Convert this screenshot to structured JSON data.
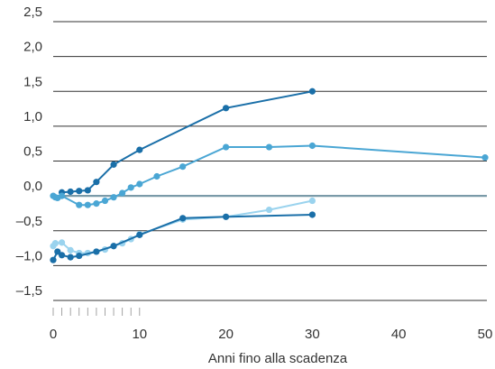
{
  "chart_data": {
    "type": "line",
    "title": "",
    "xlabel": "Anni fino alla scadenza",
    "ylabel": "",
    "xlim": [
      0,
      50
    ],
    "ylim": [
      -1.5,
      2.5
    ],
    "x_ticks": [
      0,
      10,
      20,
      30,
      40,
      50
    ],
    "x_tick_labels": [
      "0",
      "10",
      "20",
      "30",
      "40",
      "50"
    ],
    "y_ticks": [
      -1.5,
      -1.0,
      -0.5,
      0.0,
      0.5,
      1.0,
      1.5,
      2.0,
      2.5
    ],
    "y_tick_labels": [
      "–1,5",
      "–1,0",
      "–0,5",
      "0,0",
      "0,5",
      "1,0",
      "1,5",
      "2,0",
      "2,5"
    ],
    "minor_x_ticks": [
      0,
      1,
      2,
      3,
      4,
      5,
      6,
      7,
      8,
      9,
      10
    ],
    "grid": "horizontal",
    "legend": "none",
    "zero_line_color": "#7a9aa8",
    "series": [
      {
        "color": "#1a6fa8",
        "points": [
          [
            1,
            0.05
          ],
          [
            2,
            0.06
          ],
          [
            3,
            0.07
          ],
          [
            4,
            0.08
          ],
          [
            5,
            0.2
          ],
          [
            7,
            0.45
          ],
          [
            10,
            0.66
          ],
          [
            20,
            1.26
          ],
          [
            30,
            1.5
          ]
        ]
      },
      {
        "color": "#4aa6d4",
        "points": [
          [
            0,
            0.0
          ],
          [
            0.25,
            -0.02
          ],
          [
            0.5,
            -0.03
          ],
          [
            1,
            0.0
          ],
          [
            3,
            -0.13
          ],
          [
            4,
            -0.13
          ],
          [
            5,
            -0.11
          ],
          [
            6,
            -0.07
          ],
          [
            7,
            -0.02
          ],
          [
            8,
            0.04
          ],
          [
            9,
            0.12
          ],
          [
            10,
            0.17
          ],
          [
            12,
            0.28
          ],
          [
            15,
            0.42
          ],
          [
            20,
            0.7
          ],
          [
            25,
            0.7
          ],
          [
            30,
            0.72
          ],
          [
            50,
            0.55
          ]
        ]
      },
      {
        "color": "#9ad3ee",
        "points": [
          [
            0,
            -0.72
          ],
          [
            0.25,
            -0.68
          ],
          [
            1,
            -0.67
          ],
          [
            2,
            -0.78
          ],
          [
            3,
            -0.82
          ],
          [
            4,
            -0.82
          ],
          [
            5,
            -0.8
          ],
          [
            6,
            -0.77
          ],
          [
            7,
            -0.72
          ],
          [
            8,
            -0.68
          ],
          [
            9,
            -0.62
          ],
          [
            10,
            -0.55
          ],
          [
            15,
            -0.34
          ],
          [
            20,
            -0.3
          ],
          [
            25,
            -0.2
          ],
          [
            30,
            -0.07
          ]
        ]
      },
      {
        "color": "#1a6fa8",
        "points": [
          [
            0,
            -0.92
          ],
          [
            0.5,
            -0.8
          ],
          [
            1,
            -0.85
          ],
          [
            2,
            -0.88
          ],
          [
            3,
            -0.86
          ],
          [
            5,
            -0.8
          ],
          [
            7,
            -0.72
          ],
          [
            10,
            -0.56
          ],
          [
            15,
            -0.32
          ],
          [
            20,
            -0.3
          ],
          [
            30,
            -0.27
          ]
        ]
      }
    ]
  }
}
